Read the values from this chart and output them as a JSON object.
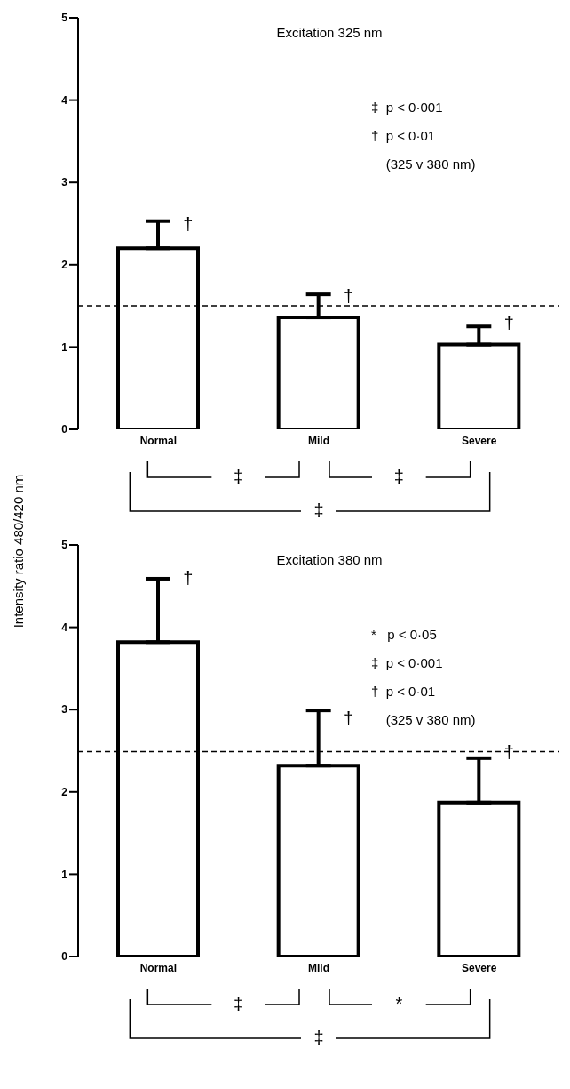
{
  "chart_data": [
    {
      "type": "bar",
      "title": "Excitation 325 nm",
      "ylabel": "Intensity ratio 480/420 nm",
      "categories": [
        "Normal",
        "Mild",
        "Severe"
      ],
      "series": [
        {
          "color": "#000000",
          "values": [
            2.2,
            1.36,
            1.03
          ],
          "errors": [
            [
              2.2,
              2.53
            ],
            [
              1.36,
              1.64
            ],
            [
              1.03,
              1.25
            ]
          ]
        }
      ],
      "ylim": [
        0,
        5
      ],
      "yticks": [
        0,
        1,
        2,
        3,
        4,
        5
      ],
      "grid": false,
      "legend": false,
      "ref_lines": [
        {
          "axis": "y",
          "value": 1.5,
          "line_style": "dashed"
        }
      ],
      "annotations": [
        "‡  p < 0·001",
        "†  p < 0·01",
        "    (325 v 380 nm)",
        "‡",
        "‡",
        "‡",
        {
          "text": "†",
          "x": "Normal",
          "y": 2.5
        },
        {
          "text": "†",
          "x": "Mild",
          "y": 1.62
        },
        {
          "text": "†",
          "x": "Severe",
          "y": 1.3
        }
      ]
    },
    {
      "type": "bar",
      "title": "Excitation 380 nm",
      "categories": [
        "Normal",
        "Mild",
        "Severe"
      ],
      "series": [
        {
          "color": "#000000",
          "values": [
            3.82,
            2.32,
            1.87
          ],
          "errors": [
            [
              3.82,
              4.59
            ],
            [
              2.32,
              2.99
            ],
            [
              1.87,
              2.41
            ]
          ]
        }
      ],
      "ylim": [
        0,
        5
      ],
      "yticks": [
        0,
        1,
        2,
        3,
        4,
        5
      ],
      "grid": false,
      "legend": false,
      "ref_lines": [
        {
          "axis": "y",
          "value": 2.49,
          "line_style": "dashed"
        }
      ],
      "annotations": [
        "*   p < 0·05",
        "‡  p < 0·001",
        "†  p < 0·01",
        "    (325 v 380 nm)",
        "‡",
        "*",
        "‡",
        {
          "text": "†",
          "x": "Normal",
          "y": 4.6
        },
        {
          "text": "†",
          "x": "Mild",
          "y": 2.9
        },
        {
          "text": "†",
          "x": "Severe",
          "y": 2.49
        }
      ]
    }
  ]
}
